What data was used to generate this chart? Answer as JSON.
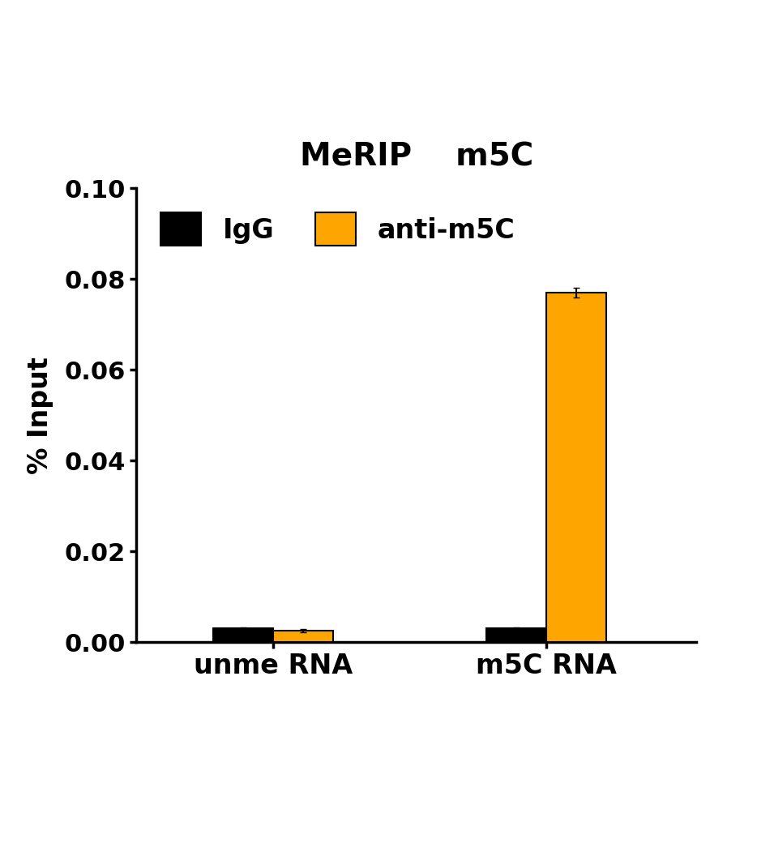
{
  "title": "MeRIP    m5C",
  "ylabel": "% Input",
  "groups": [
    "unme RNA",
    "m5C RNA"
  ],
  "series": {
    "IgG": {
      "values": [
        0.003,
        0.003
      ],
      "errors": [
        0.0002,
        0.0002
      ],
      "color": "#000000"
    },
    "anti-m5C": {
      "values": [
        0.0025,
        0.077
      ],
      "errors": [
        0.0003,
        0.001
      ],
      "color": "#FFA500"
    }
  },
  "ylim": [
    0,
    0.1
  ],
  "yticks": [
    0.0,
    0.02,
    0.04,
    0.06,
    0.08,
    0.1
  ],
  "bar_width": 0.22,
  "group_positions": [
    1.0,
    2.0
  ],
  "legend_labels": [
    "IgG",
    "anti-m5C"
  ],
  "legend_colors": [
    "#000000",
    "#FFA500"
  ],
  "background_color": "#ffffff",
  "title_fontsize": 28,
  "axis_fontsize": 24,
  "tick_fontsize": 22,
  "legend_fontsize": 24
}
